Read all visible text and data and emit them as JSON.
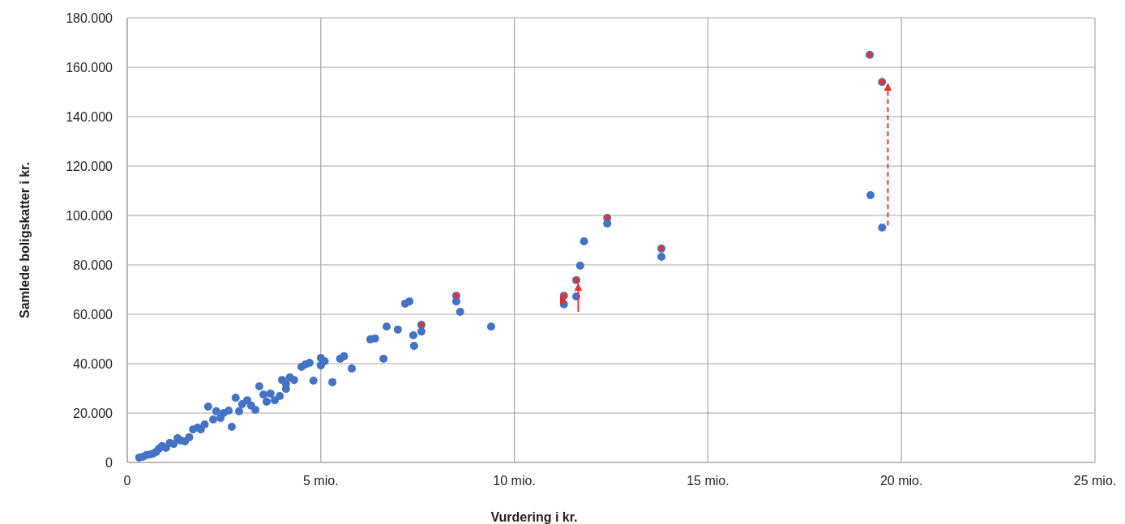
{
  "chart_data": {
    "type": "scatter",
    "xlabel": "Vurdering i kr.",
    "ylabel": "Samlede boligskatter i kr.",
    "xlim": [
      0,
      25
    ],
    "ylim": [
      0,
      180000
    ],
    "xticks": [
      0,
      {
        "value": 5,
        "label": "5 mio."
      },
      {
        "value": 10,
        "label": "10 mio."
      },
      {
        "value": 15,
        "label": "15 mio."
      },
      {
        "value": 20,
        "label": "20 mio."
      },
      {
        "value": 25,
        "label": "25 mio."
      }
    ],
    "yticks": [
      0,
      {
        "value": 20000,
        "label": "20.000"
      },
      {
        "value": 40000,
        "label": "40.000"
      },
      {
        "value": 60000,
        "label": "60.000"
      },
      {
        "value": 80000,
        "label": "80.000"
      },
      {
        "value": 100000,
        "label": "100.000"
      },
      {
        "value": 120000,
        "label": "120.000"
      },
      {
        "value": 140000,
        "label": "140.000"
      },
      {
        "value": 160000,
        "label": "160.000"
      },
      {
        "value": 180000,
        "label": "180.000"
      }
    ],
    "grid": true,
    "marker": "circle",
    "series": [
      {
        "color": "#4472c4",
        "x": [
          0.31,
          0.4,
          0.5,
          0.6,
          0.67,
          0.75,
          0.82,
          0.9,
          1.0,
          1.1,
          1.2,
          1.3,
          1.38,
          1.49,
          1.6,
          1.7,
          1.82,
          1.9,
          2.0,
          2.09,
          2.22,
          2.3,
          2.41,
          2.49,
          2.62,
          2.7,
          2.8,
          2.89,
          2.97,
          3.1,
          3.2,
          3.31,
          3.41,
          3.52,
          3.6,
          3.7,
          3.81,
          3.94,
          4.0,
          4.1,
          4.1,
          4.2,
          4.31,
          4.5,
          4.6,
          4.71,
          4.81,
          5.0,
          5.0,
          5.1,
          5.3,
          5.5,
          5.6,
          5.8,
          6.28,
          6.4,
          6.62,
          6.7,
          6.99,
          7.18,
          7.29,
          7.39,
          7.41,
          7.6,
          7.6,
          8.5,
          8.5,
          8.6,
          9.4,
          11.28,
          11.28,
          11.6,
          11.6,
          11.7,
          11.8,
          12.4,
          12.4,
          13.8,
          13.8,
          19.18,
          19.5,
          19.2,
          19.5
        ],
        "values": [
          2000,
          2300,
          3000,
          3300,
          3600,
          4300,
          5600,
          6600,
          5900,
          7900,
          7500,
          9800,
          8900,
          8500,
          10200,
          13400,
          14100,
          13400,
          15400,
          22600,
          17400,
          20700,
          18000,
          20000,
          21000,
          14400,
          26200,
          20700,
          23600,
          25200,
          23000,
          21300,
          30800,
          27500,
          24600,
          27900,
          25200,
          26900,
          33400,
          31800,
          29800,
          34400,
          33400,
          38700,
          39700,
          40300,
          33100,
          42300,
          39300,
          41000,
          32500,
          42000,
          43000,
          38000,
          49800,
          50200,
          42000,
          55000,
          53800,
          64300,
          65200,
          51500,
          47200,
          53000,
          55700,
          67500,
          65200,
          61000,
          55000,
          64000,
          67500,
          67200,
          73800,
          79700,
          89500,
          99000,
          96700,
          86600,
          83300,
          165000,
          154000,
          108200,
          95100
        ]
      },
      {
        "color": "#e8312f",
        "x": [
          7.6,
          8.5,
          11.28,
          11.6,
          12.4,
          13.8,
          19.18,
          19.5
        ],
        "values": [
          55700,
          67500,
          67500,
          73800,
          99000,
          86600,
          165000,
          154000
        ]
      }
    ]
  }
}
